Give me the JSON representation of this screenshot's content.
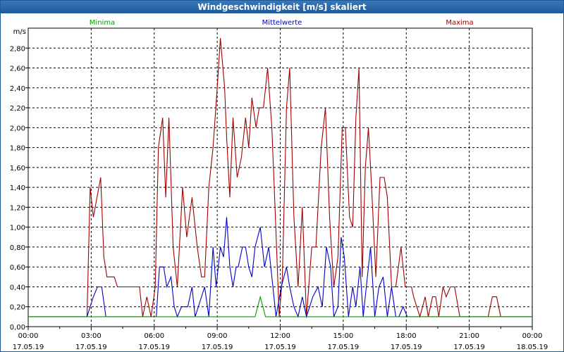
{
  "window": {
    "title": "Windgeschwindigkeit [m/s] skaliert"
  },
  "chart_data": {
    "type": "line",
    "title": "Windgeschwindigkeit [m/s] skaliert",
    "ylabel": "m/s",
    "xlabel": "",
    "ylim": [
      0,
      3.0
    ],
    "xlim": [
      0,
      24
    ],
    "grid": true,
    "legend": "top",
    "y_ticks": [
      "0,00",
      "0,20",
      "0,40",
      "0,60",
      "0,80",
      "1,00",
      "1,20",
      "1,40",
      "1,60",
      "1,80",
      "2,00",
      "2,20",
      "2,40",
      "2,60",
      "2,80"
    ],
    "x_ticks": [
      {
        "time": "00:00",
        "date": "17.05.19"
      },
      {
        "time": "03:00",
        "date": "17.05.19"
      },
      {
        "time": "06:00",
        "date": "17.05.19"
      },
      {
        "time": "09:00",
        "date": "17.05.19"
      },
      {
        "time": "12:00",
        "date": "17.05.19"
      },
      {
        "time": "15:00",
        "date": "17.05.19"
      },
      {
        "time": "18:00",
        "date": "17.05.19"
      },
      {
        "time": "21:00",
        "date": "17.05.19"
      },
      {
        "time": "00:00",
        "date": "18.05.19"
      }
    ],
    "series": [
      {
        "name": "Minima",
        "color": "#00a000",
        "points": [
          [
            0,
            0.1
          ],
          [
            10.8,
            0.1
          ],
          [
            11.05,
            0.3
          ],
          [
            11.3,
            0.1
          ],
          [
            24,
            0.1
          ]
        ]
      },
      {
        "name": "Mittelwerte",
        "color": "#0000c8",
        "points": [
          [
            0,
            0.1
          ],
          [
            2.8,
            0.1
          ],
          [
            3.1,
            0.3
          ],
          [
            3.3,
            0.4
          ],
          [
            3.5,
            0.4
          ],
          [
            3.7,
            0.1
          ],
          [
            6.1,
            0.1
          ],
          [
            6.25,
            0.6
          ],
          [
            6.45,
            0.6
          ],
          [
            6.6,
            0.4
          ],
          [
            6.8,
            0.5
          ],
          [
            6.95,
            0.2
          ],
          [
            7.1,
            0.1
          ],
          [
            7.3,
            0.2
          ],
          [
            7.6,
            0.2
          ],
          [
            7.8,
            0.4
          ],
          [
            7.95,
            0.1
          ],
          [
            8.4,
            0.4
          ],
          [
            8.6,
            0.1
          ],
          [
            8.8,
            0.8
          ],
          [
            8.95,
            0.4
          ],
          [
            9.15,
            0.8
          ],
          [
            9.3,
            0.7
          ],
          [
            9.45,
            1.1
          ],
          [
            9.6,
            0.6
          ],
          [
            9.75,
            0.4
          ],
          [
            9.9,
            0.6
          ],
          [
            10.0,
            0.6
          ],
          [
            10.2,
            0.8
          ],
          [
            10.35,
            0.8
          ],
          [
            10.5,
            0.6
          ],
          [
            10.65,
            0.5
          ],
          [
            10.8,
            0.8
          ],
          [
            11.05,
            1.0
          ],
          [
            11.25,
            0.6
          ],
          [
            11.45,
            0.8
          ],
          [
            11.65,
            0.4
          ],
          [
            11.8,
            0.1
          ],
          [
            12.05,
            0.4
          ],
          [
            12.3,
            0.6
          ],
          [
            12.45,
            0.4
          ],
          [
            12.65,
            0.2
          ],
          [
            12.85,
            0.1
          ],
          [
            13.05,
            0.3
          ],
          [
            13.25,
            0.1
          ],
          [
            13.55,
            0.3
          ],
          [
            13.8,
            0.4
          ],
          [
            14.0,
            0.2
          ],
          [
            14.2,
            0.8
          ],
          [
            14.4,
            0.6
          ],
          [
            14.55,
            0.1
          ],
          [
            14.75,
            0.2
          ],
          [
            14.9,
            0.9
          ],
          [
            15.05,
            0.7
          ],
          [
            15.25,
            0.1
          ],
          [
            15.45,
            0.4
          ],
          [
            15.6,
            0.2
          ],
          [
            15.8,
            0.6
          ],
          [
            15.95,
            0.1
          ],
          [
            16.1,
            0.4
          ],
          [
            16.3,
            0.8
          ],
          [
            16.5,
            0.1
          ],
          [
            16.7,
            0.4
          ],
          [
            16.9,
            0.5
          ],
          [
            17.1,
            0.1
          ],
          [
            17.3,
            0.4
          ],
          [
            17.5,
            0.1
          ],
          [
            17.65,
            0.1
          ],
          [
            17.85,
            0.2
          ],
          [
            18.05,
            0.1
          ],
          [
            24,
            0.1
          ]
        ]
      },
      {
        "name": "Maxima",
        "color": "#a00000",
        "points": [
          [
            0,
            0.1
          ],
          [
            2.8,
            0.1
          ],
          [
            2.95,
            1.4
          ],
          [
            3.1,
            1.1
          ],
          [
            3.45,
            1.5
          ],
          [
            3.6,
            0.7
          ],
          [
            3.75,
            0.5
          ],
          [
            4.1,
            0.5
          ],
          [
            4.25,
            0.4
          ],
          [
            5.3,
            0.4
          ],
          [
            5.45,
            0.1
          ],
          [
            5.65,
            0.3
          ],
          [
            5.85,
            0.1
          ],
          [
            6.05,
            0.4
          ],
          [
            6.2,
            1.8
          ],
          [
            6.4,
            2.1
          ],
          [
            6.55,
            1.3
          ],
          [
            6.7,
            2.1
          ],
          [
            6.9,
            0.8
          ],
          [
            7.1,
            0.4
          ],
          [
            7.35,
            1.4
          ],
          [
            7.55,
            0.9
          ],
          [
            7.8,
            1.3
          ],
          [
            8.05,
            0.8
          ],
          [
            8.25,
            0.5
          ],
          [
            8.4,
            0.5
          ],
          [
            8.6,
            1.4
          ],
          [
            8.8,
            1.8
          ],
          [
            9.0,
            2.4
          ],
          [
            9.15,
            2.9
          ],
          [
            9.35,
            2.4
          ],
          [
            9.45,
            1.9
          ],
          [
            9.6,
            1.3
          ],
          [
            9.75,
            2.1
          ],
          [
            9.95,
            1.5
          ],
          [
            10.15,
            1.7
          ],
          [
            10.35,
            2.1
          ],
          [
            10.5,
            1.8
          ],
          [
            10.65,
            2.3
          ],
          [
            10.85,
            2.0
          ],
          [
            11.0,
            2.2
          ],
          [
            11.2,
            2.2
          ],
          [
            11.4,
            2.6
          ],
          [
            11.6,
            2.0
          ],
          [
            11.75,
            1.2
          ],
          [
            11.95,
            0.1
          ],
          [
            12.1,
            0.5
          ],
          [
            12.3,
            2.2
          ],
          [
            12.45,
            2.6
          ],
          [
            12.65,
            1.1
          ],
          [
            12.85,
            0.4
          ],
          [
            13.05,
            1.2
          ],
          [
            13.25,
            0.1
          ],
          [
            13.5,
            0.8
          ],
          [
            13.7,
            0.8
          ],
          [
            13.95,
            1.8
          ],
          [
            14.15,
            2.2
          ],
          [
            14.35,
            1.1
          ],
          [
            14.55,
            0.4
          ],
          [
            14.75,
            0.7
          ],
          [
            14.95,
            2.0
          ],
          [
            15.1,
            2.0
          ],
          [
            15.3,
            1.1
          ],
          [
            15.45,
            1.0
          ],
          [
            15.6,
            2.1
          ],
          [
            15.75,
            2.6
          ],
          [
            15.9,
            0.5
          ],
          [
            16.05,
            1.6
          ],
          [
            16.2,
            2.0
          ],
          [
            16.35,
            1.4
          ],
          [
            16.55,
            0.5
          ],
          [
            16.75,
            1.5
          ],
          [
            16.95,
            1.5
          ],
          [
            17.1,
            1.3
          ],
          [
            17.3,
            0.4
          ],
          [
            17.5,
            0.4
          ],
          [
            17.75,
            0.8
          ],
          [
            17.95,
            0.4
          ],
          [
            18.25,
            0.4
          ],
          [
            18.35,
            0.3
          ],
          [
            18.65,
            0.1
          ],
          [
            18.9,
            0.3
          ],
          [
            19.05,
            0.1
          ],
          [
            19.25,
            0.3
          ],
          [
            19.4,
            0.3
          ],
          [
            19.55,
            0.1
          ],
          [
            19.75,
            0.4
          ],
          [
            19.9,
            0.3
          ],
          [
            20.1,
            0.4
          ],
          [
            20.3,
            0.4
          ],
          [
            20.55,
            0.1
          ],
          [
            21.9,
            0.1
          ],
          [
            22.1,
            0.3
          ],
          [
            22.3,
            0.3
          ],
          [
            22.5,
            0.1
          ],
          [
            24,
            0.1
          ]
        ]
      }
    ]
  }
}
